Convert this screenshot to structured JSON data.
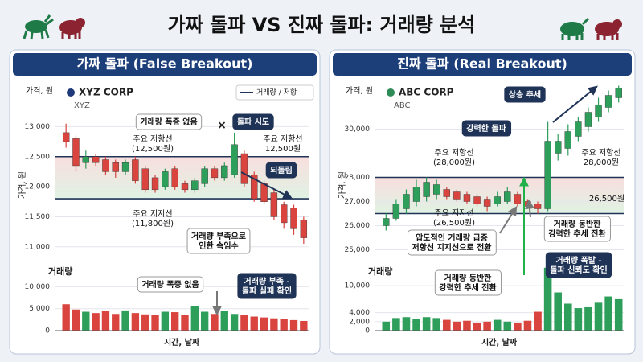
{
  "title": "가짜 돌파 VS 진짜 돌파: 거래량 분석",
  "chart_data": [
    {
      "type": "candlestick",
      "title": "가짜 돌파 (False Breakout)",
      "company": "XYZ CORP",
      "ticker": "XYZ",
      "y_label": "가격, 원",
      "legend": "거래량 / 저항",
      "x_label": "시간, 날짜",
      "up_color": "#2e9e5b",
      "down_color": "#d9443f",
      "company_color": "#1f3a7a",
      "open": [
        12900,
        12800,
        12400,
        12500,
        12450,
        12400,
        12250,
        12450,
        12300,
        12150,
        12000,
        12300,
        12050,
        11950,
        12050,
        12300,
        12150,
        12200,
        12550,
        12200,
        12050,
        11900,
        11700,
        11650,
        11450
      ],
      "high": [
        13050,
        12850,
        12600,
        12550,
        12500,
        12450,
        12450,
        12500,
        12350,
        12200,
        12300,
        12350,
        12100,
        12150,
        12350,
        12350,
        12400,
        12900,
        12600,
        12250,
        12100,
        11950,
        11750,
        11700,
        11500
      ],
      "low": [
        12650,
        12250,
        12300,
        12350,
        12200,
        12150,
        12200,
        12050,
        11900,
        11900,
        11950,
        11950,
        11900,
        11900,
        12000,
        12100,
        12100,
        12150,
        12000,
        11750,
        11700,
        11450,
        11300,
        11200,
        11050
      ],
      "close": [
        12750,
        12350,
        12500,
        12400,
        12250,
        12250,
        12400,
        12100,
        11950,
        11950,
        12250,
        12000,
        11950,
        12100,
        12300,
        12150,
        12350,
        12700,
        12050,
        11800,
        11750,
        11500,
        11400,
        11300,
        11150
      ],
      "ylim": [
        10850,
        13300
      ],
      "yticks": [
        {
          "value": 11000,
          "label": "11,000"
        },
        {
          "value": 11500,
          "label": "11,500"
        },
        {
          "value": 12000,
          "label": "12,000"
        },
        {
          "value": 12500,
          "label": "12,500"
        },
        {
          "value": 13000,
          "label": "13,000"
        }
      ],
      "resistance": 12500,
      "support": 11800,
      "volume": {
        "label": "거래량",
        "values": [
          6000,
          4800,
          4300,
          4000,
          4500,
          3800,
          4600,
          4000,
          3700,
          3500,
          4300,
          4200,
          3600,
          5500,
          4300,
          3800,
          4400,
          3800,
          3500,
          3200,
          3000,
          2800,
          2600,
          2400,
          2200
        ],
        "ylim": [
          0,
          13000
        ],
        "yticks": [
          0,
          {
            "value": 5000,
            "label": "5,000"
          },
          {
            "value": 10000,
            "label": "10,000"
          }
        ]
      },
      "annotations": [
        [
          "거래량 폭증 없음"
        ],
        [
          "돌파 시도"
        ],
        [
          "주요 저항선",
          "(12,500원)"
        ],
        [
          "주요 저항선",
          "12,500원"
        ],
        [
          "되돌림"
        ],
        [
          "주요 지지선",
          "(11,800원)"
        ],
        [
          "거래량 부족으로",
          "인한 속임수"
        ],
        [
          "거래량 폭증 없음"
        ],
        [
          "거래량 부족 -",
          "돌파 실패 확인"
        ]
      ]
    },
    {
      "type": "candlestick",
      "title": "진짜 돌파 (Real Breakout)",
      "company": "ABC CORP",
      "ticker": "ABC",
      "y_label": "가격, 원",
      "x_label": "시간, 날짜",
      "up_color": "#2e9e5b",
      "down_color": "#d9443f",
      "company_color": "#2e8a57",
      "open": [
        26000,
        26300,
        26700,
        27000,
        27200,
        27300,
        27500,
        27400,
        27300,
        27200,
        27100,
        26900,
        27000,
        27300,
        27000,
        26900,
        26700,
        29000,
        29200,
        29700,
        30100,
        30500,
        30900,
        31300
      ],
      "high": [
        26500,
        27100,
        27500,
        27900,
        28000,
        27900,
        27600,
        27500,
        27400,
        27300,
        27200,
        27400,
        27600,
        27400,
        27100,
        27000,
        30300,
        29800,
        30200,
        30500,
        30900,
        31300,
        31600,
        31800
      ],
      "low": [
        25800,
        26200,
        26500,
        26800,
        27000,
        27100,
        27100,
        27000,
        26900,
        26800,
        26600,
        26800,
        26900,
        26800,
        26700,
        26500,
        26600,
        28700,
        28900,
        29500,
        29900,
        30300,
        30700,
        31100
      ],
      "close": [
        26300,
        26900,
        27300,
        27600,
        27800,
        27700,
        27200,
        27100,
        27000,
        26900,
        26800,
        27200,
        27400,
        26900,
        26800,
        26700,
        29500,
        29500,
        29900,
        30300,
        30700,
        31000,
        31400,
        31700
      ],
      "ylim": [
        24750,
        31850
      ],
      "yticks": [
        {
          "value": 25000,
          "label": "25,000"
        },
        {
          "value": 26000,
          "label": "26,000"
        },
        {
          "value": 27000,
          "label": "27,000"
        },
        {
          "value": 28000,
          "label": "28,000"
        },
        {
          "value": 30000,
          "label": "30,000"
        }
      ],
      "resistance": 28000,
      "support": 26500,
      "volume": {
        "label": "거래량",
        "values": [
          2000,
          2800,
          3000,
          2600,
          3000,
          2800,
          2400,
          2000,
          2200,
          1800,
          2000,
          2400,
          2000,
          1800,
          2200,
          4200,
          14000,
          8500,
          6000,
          5000,
          5200,
          6200,
          7600,
          7000
        ],
        "ylim": [
          0,
          14500
        ],
        "yticks": [
          0,
          {
            "value": 2000,
            "label": "2,000"
          },
          {
            "value": 4000,
            "label": "4,000"
          },
          {
            "value": 10000,
            "label": "10,000"
          }
        ]
      },
      "annotations": [
        [
          "상승 추세"
        ],
        [
          "강력한 돌파"
        ],
        [
          "주요 저항선",
          "(28,000원)"
        ],
        [
          "주요 저항선",
          "28,000원"
        ],
        [
          "26,500원"
        ],
        [
          "주요 지지선",
          "(26,500원)"
        ],
        [
          "거래량 동반한",
          "강력한 추세 전환"
        ],
        [
          "압도적인 거래량 급증",
          "저항선 지지선으로 전환"
        ],
        [
          "거래량 동반한",
          "강력한 추세 전환"
        ],
        [
          "거래량 폭발 -",
          "돌파 신뢰도 확인"
        ]
      ]
    }
  ]
}
